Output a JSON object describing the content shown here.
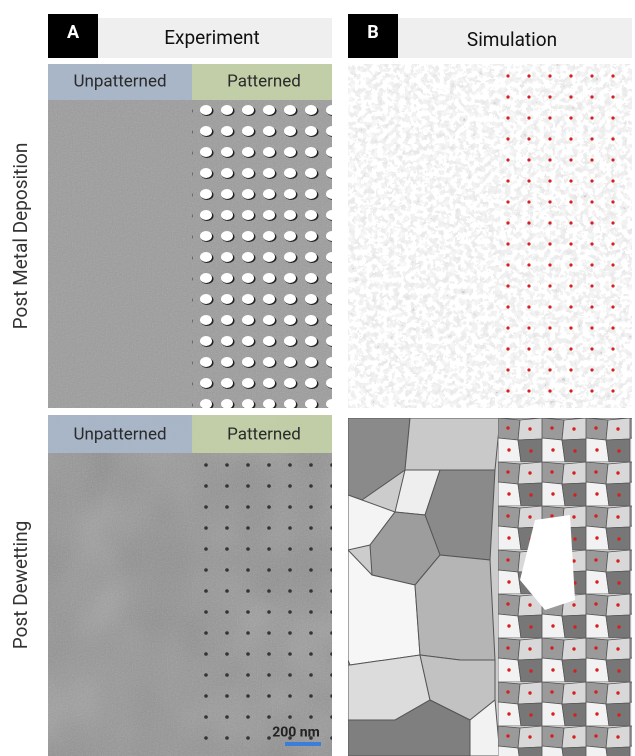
{
  "experiment": {
    "letter": "A",
    "title": "Experiment",
    "top_regions": [
      "Unpatterned",
      "Patterned"
    ],
    "bottom_regions": [
      "Unpatterned",
      "Patterned"
    ],
    "scale_bar": "200 nm"
  },
  "simulation": {
    "letter": "B",
    "title": "Simulation"
  },
  "row_labels": [
    "Post Metal Deposition",
    "Post Dewetting"
  ]
}
